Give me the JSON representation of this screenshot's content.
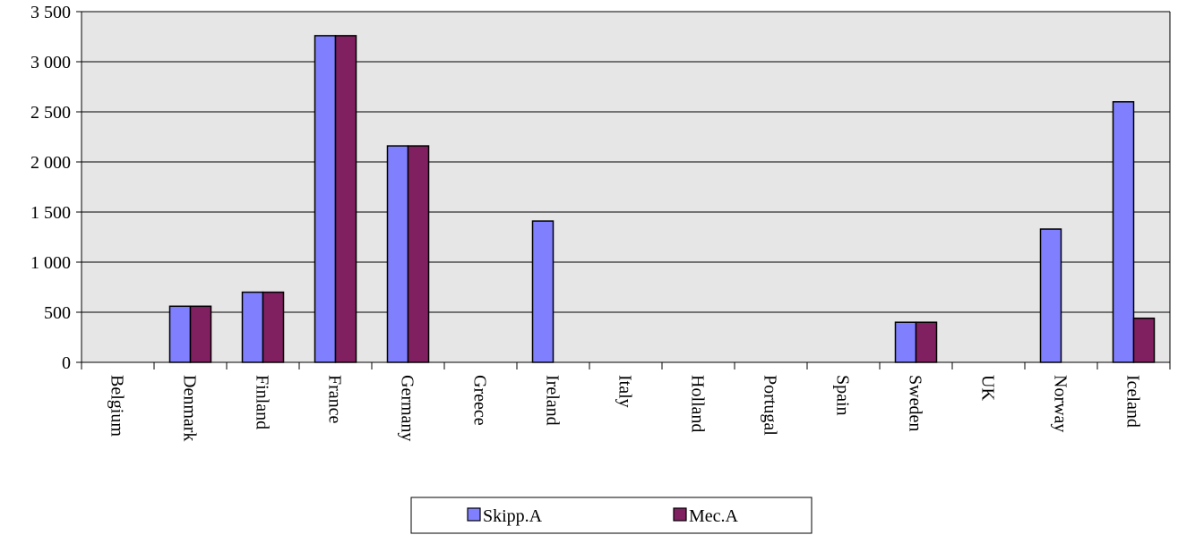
{
  "chart_data": {
    "type": "bar",
    "title": "",
    "xlabel": "",
    "ylabel": "",
    "ylim": [
      0,
      3500
    ],
    "yticks": [
      0,
      500,
      1000,
      1500,
      2000,
      2500,
      3000,
      3500
    ],
    "ytick_labels": [
      "0",
      "500",
      "1 000",
      "1 500",
      "2 000",
      "2 500",
      "3 000",
      "3 500"
    ],
    "grid": true,
    "legend_position": "bottom-center",
    "categories": [
      "Belgium",
      "Denmark",
      "Finland",
      "France",
      "Germany",
      "Greece",
      "Ireland",
      "Italy",
      "Holland",
      "Portugal",
      "Spain",
      "Sweden",
      "UK",
      "Norway",
      "Iceland"
    ],
    "series": [
      {
        "name": "Skipp.A",
        "color": "#8080ff",
        "values": [
          0,
          560,
          700,
          3260,
          2160,
          0,
          1410,
          0,
          0,
          0,
          0,
          400,
          0,
          1330,
          2600
        ]
      },
      {
        "name": "Mec.A",
        "color": "#802060",
        "values": [
          0,
          560,
          700,
          3260,
          2160,
          0,
          0,
          0,
          0,
          0,
          0,
          400,
          0,
          0,
          440
        ]
      }
    ],
    "plot_background": "#e6e6e6"
  }
}
